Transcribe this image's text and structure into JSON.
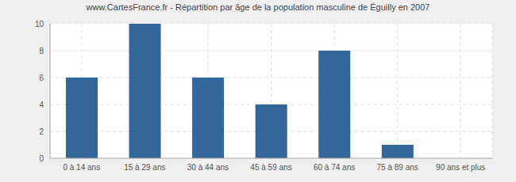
{
  "chart_data": {
    "type": "bar",
    "title": "www.CartesFrance.fr - Répartition par âge de la population masculine de Éguilly en 2007",
    "categories": [
      "0 à 14 ans",
      "15 à 29 ans",
      "30 à 44 ans",
      "45 à 59 ans",
      "60 à 74 ans",
      "75 à 89 ans",
      "90 ans et plus"
    ],
    "values": [
      6,
      10,
      6,
      4,
      8,
      1,
      0
    ],
    "color": "#336699",
    "ylim": [
      0,
      10
    ],
    "yticks": [
      0,
      2,
      4,
      6,
      8,
      10
    ],
    "grid": true
  }
}
